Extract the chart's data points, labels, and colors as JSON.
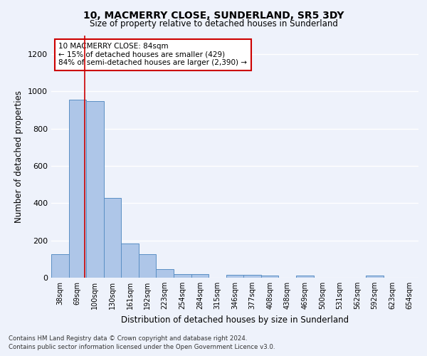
{
  "title1": "10, MACMERRY CLOSE, SUNDERLAND, SR5 3DY",
  "title2": "Size of property relative to detached houses in Sunderland",
  "xlabel": "Distribution of detached houses by size in Sunderland",
  "ylabel": "Number of detached properties",
  "categories": [
    "38sqm",
    "69sqm",
    "100sqm",
    "130sqm",
    "161sqm",
    "192sqm",
    "223sqm",
    "254sqm",
    "284sqm",
    "315sqm",
    "346sqm",
    "377sqm",
    "408sqm",
    "438sqm",
    "469sqm",
    "500sqm",
    "531sqm",
    "562sqm",
    "592sqm",
    "623sqm",
    "654sqm"
  ],
  "values": [
    125,
    955,
    950,
    430,
    185,
    125,
    45,
    20,
    20,
    0,
    15,
    15,
    10,
    0,
    10,
    0,
    0,
    0,
    10,
    0,
    0
  ],
  "bar_color": "#aec6e8",
  "bar_edge_color": "#5a8fc4",
  "annotation_text": "10 MACMERRY CLOSE: 84sqm\n← 15% of detached houses are smaller (429)\n84% of semi-detached houses are larger (2,390) →",
  "annotation_box_color": "#ffffff",
  "annotation_box_edge": "#cc0000",
  "red_line_x": 1.42,
  "ylim": [
    0,
    1300
  ],
  "yticks": [
    0,
    200,
    400,
    600,
    800,
    1000,
    1200
  ],
  "footer1": "Contains HM Land Registry data © Crown copyright and database right 2024.",
  "footer2": "Contains public sector information licensed under the Open Government Licence v3.0.",
  "bg_color": "#eef2fb",
  "grid_color": "#ffffff"
}
